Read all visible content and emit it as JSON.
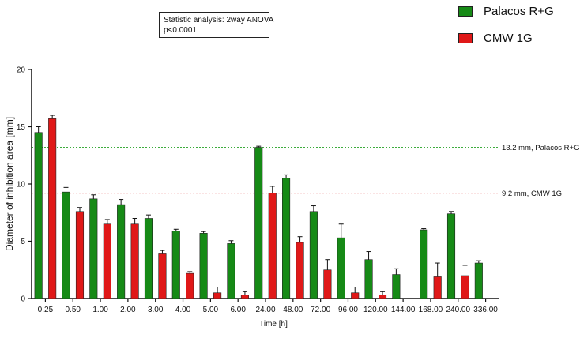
{
  "stats_note": {
    "line1": "Statistic analysis: 2way ANOVA",
    "line2": "p<0.0001"
  },
  "legend": {
    "items": [
      {
        "label": "Palacos R+G",
        "color": "#168a16"
      },
      {
        "label": "CMW 1G",
        "color": "#e01818"
      }
    ]
  },
  "chart_data": {
    "type": "bar",
    "xlabel": "Time [h]",
    "ylabel": "Diameter of inhibition area [mm]",
    "ylim": [
      0,
      20
    ],
    "yticks": [
      "0",
      "5",
      "10",
      "15",
      "20"
    ],
    "ytick_values": [
      0,
      5,
      10,
      15,
      20
    ],
    "categories": [
      "0.25",
      "0.50",
      "1.00",
      "2.00",
      "3.00",
      "4.00",
      "5.00",
      "6.00",
      "24.00",
      "48.00",
      "72.00",
      "96.00",
      "120.00",
      "144.00",
      "168.00",
      "240.00",
      "336.00"
    ],
    "series": [
      {
        "name": "Palacos R+G",
        "color": "#168a16",
        "values": [
          14.5,
          9.3,
          8.7,
          8.2,
          7.0,
          5.9,
          5.7,
          4.8,
          13.2,
          10.5,
          7.6,
          5.3,
          3.4,
          2.1,
          6.0,
          7.4,
          3.1
        ],
        "errors": [
          0.5,
          0.4,
          0.35,
          0.45,
          0.3,
          0.15,
          0.15,
          0.25,
          0.1,
          0.3,
          0.5,
          1.2,
          0.7,
          0.5,
          0.1,
          0.2,
          0.2
        ]
      },
      {
        "name": "CMW 1G",
        "color": "#e01818",
        "values": [
          15.7,
          7.6,
          6.5,
          6.5,
          3.9,
          2.2,
          0.5,
          0.3,
          9.2,
          4.9,
          2.5,
          0.5,
          0.3,
          null,
          1.9,
          2.0,
          null
        ],
        "errors": [
          0.3,
          0.35,
          0.4,
          0.5,
          0.3,
          0.15,
          0.5,
          0.3,
          0.6,
          0.5,
          0.9,
          0.5,
          0.3,
          null,
          1.2,
          0.9,
          null
        ]
      }
    ],
    "reference_lines": [
      {
        "value": 13.2,
        "label": "13.2 mm, Palacos R+G",
        "color": "#22a022"
      },
      {
        "value": 9.2,
        "label": "9.2 mm, CMW 1G",
        "color": "#d42020"
      }
    ],
    "grid": false
  }
}
